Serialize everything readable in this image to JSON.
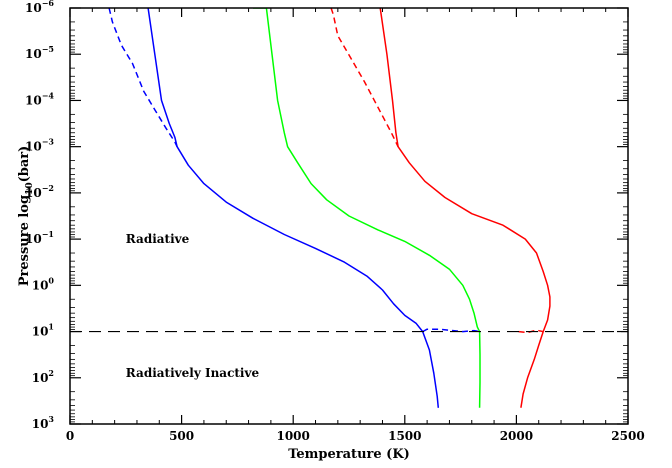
{
  "chart_data": {
    "type": "line",
    "title": "",
    "xlabel": "Temperature (K)",
    "ylabel": {
      "prefix": "Pressure log",
      "sub": "10",
      "suffix": "(bar)"
    },
    "xlim": [
      0,
      2500
    ],
    "ylim_log10_bar": [
      -6,
      3
    ],
    "y_scale": "log",
    "y_inverted": true,
    "grid": false,
    "x_ticks": [
      0,
      500,
      1000,
      1500,
      2000,
      2500
    ],
    "x_tick_labels": [
      "0",
      "500",
      "1000",
      "1500",
      "2000",
      "2500"
    ],
    "y_ticks": [
      -6,
      -5,
      -4,
      -3,
      -2,
      -1,
      0,
      1,
      2,
      3
    ],
    "y_tick_labels": [
      {
        "base": "10",
        "exp": "−6"
      },
      {
        "base": "10",
        "exp": "−5"
      },
      {
        "base": "10",
        "exp": "−4"
      },
      {
        "base": "10",
        "exp": "−3"
      },
      {
        "base": "10",
        "exp": "−2"
      },
      {
        "base": "10",
        "exp": "−1"
      },
      {
        "base": "10",
        "exp": "0"
      },
      {
        "base": "10",
        "exp": "1"
      },
      {
        "base": "10",
        "exp": "2"
      },
      {
        "base": "10",
        "exp": "3"
      }
    ],
    "annotations": [
      {
        "text": "Radiative",
        "x": 250,
        "y": -1
      },
      {
        "text": "Radiatively Inactive",
        "x": 250,
        "y": 1.9
      }
    ],
    "reference_line": {
      "y": 1,
      "style": "dashed",
      "color": "#000000"
    },
    "series": [
      {
        "color": "#0000ff",
        "style": "solid",
        "points": [
          [
            350,
            -6
          ],
          [
            380,
            -5
          ],
          [
            410,
            -4
          ],
          [
            445,
            -3.5
          ],
          [
            470,
            -3.2
          ],
          [
            480,
            -3
          ],
          [
            530,
            -2.6
          ],
          [
            600,
            -2.2
          ],
          [
            700,
            -1.8
          ],
          [
            820,
            -1.45
          ],
          [
            960,
            -1.1
          ],
          [
            1100,
            -0.8
          ],
          [
            1230,
            -0.5
          ],
          [
            1330,
            -0.2
          ],
          [
            1400,
            0.1
          ],
          [
            1450,
            0.4
          ],
          [
            1500,
            0.65
          ],
          [
            1550,
            0.82
          ],
          [
            1580,
            1
          ],
          [
            1610,
            1.4
          ],
          [
            1630,
            1.9
          ],
          [
            1645,
            2.4
          ],
          [
            1650,
            2.65
          ]
        ]
      },
      {
        "color": "#0000ff",
        "style": "dashed",
        "points": [
          [
            175,
            -6
          ],
          [
            190,
            -5.7
          ],
          [
            230,
            -5.2
          ],
          [
            280,
            -4.8
          ],
          [
            330,
            -4.2
          ],
          [
            380,
            -3.8
          ],
          [
            430,
            -3.4
          ],
          [
            470,
            -3.1
          ],
          [
            480,
            -3
          ]
        ]
      },
      {
        "color": "#0000ff",
        "style": "dashed",
        "points": [
          [
            1580,
            1
          ],
          [
            1600,
            0.95
          ],
          [
            1650,
            0.95
          ],
          [
            1700,
            0.97
          ],
          [
            1760,
            1
          ],
          [
            1810,
            0.98
          ],
          [
            1840,
            1
          ]
        ]
      },
      {
        "color": "#00ff00",
        "style": "solid",
        "points": [
          [
            820,
            -6
          ],
          [
            880,
            -6
          ],
          [
            905,
            -5
          ],
          [
            930,
            -4
          ],
          [
            960,
            -3.3
          ],
          [
            975,
            -3
          ],
          [
            1020,
            -2.65
          ],
          [
            1080,
            -2.2
          ],
          [
            1150,
            -1.85
          ],
          [
            1250,
            -1.5
          ],
          [
            1380,
            -1.2
          ],
          [
            1500,
            -0.95
          ],
          [
            1610,
            -0.65
          ],
          [
            1700,
            -0.35
          ],
          [
            1760,
            0
          ],
          [
            1790,
            0.3
          ],
          [
            1810,
            0.6
          ],
          [
            1825,
            0.9
          ],
          [
            1835,
            1
          ],
          [
            1837,
            1.5
          ],
          [
            1837,
            2.1
          ],
          [
            1835,
            2.65
          ]
        ]
      },
      {
        "color": "#ff0000",
        "style": "solid",
        "points": [
          [
            1390,
            -6
          ],
          [
            1420,
            -5
          ],
          [
            1445,
            -4
          ],
          [
            1460,
            -3.3
          ],
          [
            1470,
            -3
          ],
          [
            1520,
            -2.65
          ],
          [
            1590,
            -2.25
          ],
          [
            1680,
            -1.9
          ],
          [
            1800,
            -1.55
          ],
          [
            1940,
            -1.3
          ],
          [
            2040,
            -1.0
          ],
          [
            2090,
            -0.7
          ],
          [
            2120,
            -0.3
          ],
          [
            2140,
            0
          ],
          [
            2150,
            0.25
          ],
          [
            2150,
            0.45
          ],
          [
            2140,
            0.75
          ],
          [
            2120,
            1
          ],
          [
            2100,
            1.3
          ],
          [
            2080,
            1.6
          ],
          [
            2050,
            2
          ],
          [
            2030,
            2.35
          ],
          [
            2020,
            2.65
          ]
        ]
      },
      {
        "color": "#ff0000",
        "style": "dashed",
        "points": [
          [
            1170,
            -6
          ],
          [
            1180,
            -5.85
          ],
          [
            1200,
            -5.4
          ],
          [
            1260,
            -4.9
          ],
          [
            1320,
            -4.4
          ],
          [
            1380,
            -3.85
          ],
          [
            1440,
            -3.3
          ],
          [
            1470,
            -3
          ]
        ]
      },
      {
        "color": "#ff0000",
        "style": "dashed",
        "points": [
          [
            2010,
            1
          ],
          [
            2050,
            1.02
          ],
          [
            2090,
            0.97
          ],
          [
            2120,
            1
          ]
        ]
      }
    ]
  }
}
